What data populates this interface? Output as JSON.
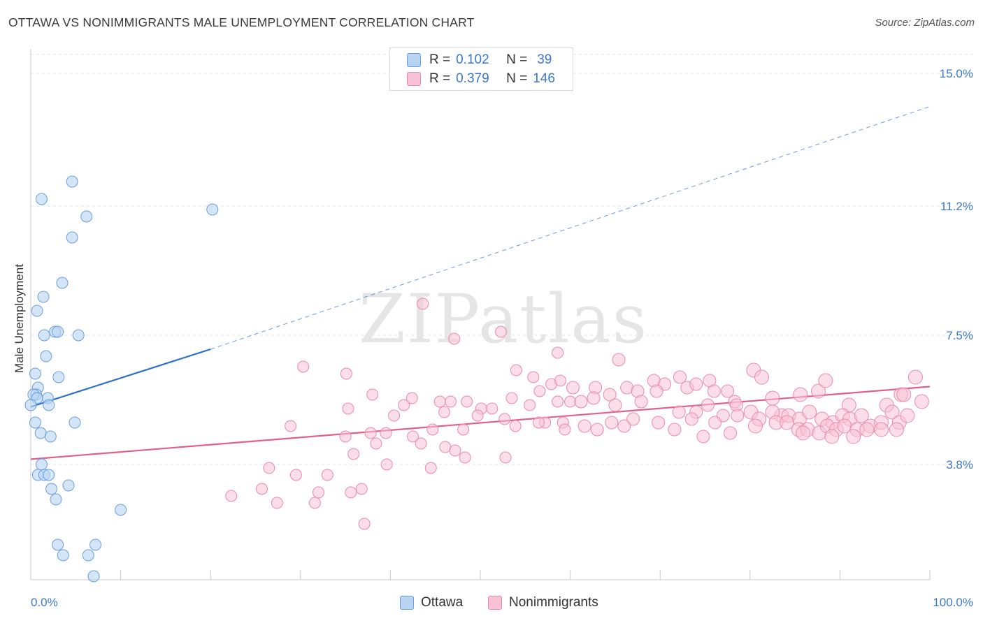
{
  "title": "OTTAWA VS NONIMMIGRANTS MALE UNEMPLOYMENT CORRELATION CHART",
  "source": "Source: ZipAtlas.com",
  "watermark": "ZIPatlas",
  "colors": {
    "ottawa_fill": "#b9d3f3",
    "ottawa_stroke": "#6a9fdc",
    "ottawa_line": "#2e6fcb",
    "nonimm_fill": "#f7c3d3",
    "nonimm_stroke": "#e98aaa",
    "nonimm_line": "#e0608c",
    "axis_text": "#3b78c8",
    "grid": "#e3e3e3"
  },
  "legend": {
    "rows": [
      {
        "r_label": "R =",
        "r_value": "0.102",
        "n_label": "N =",
        "n_value": "39"
      },
      {
        "r_label": "R =",
        "r_value": "0.379",
        "n_label": "N =",
        "n_value": "146"
      }
    ]
  },
  "bottom_legend": [
    "Ottawa",
    "Nonimmigrants"
  ],
  "chart_data": {
    "type": "scatter",
    "title": "OTTAWA VS NONIMMIGRANTS MALE UNEMPLOYMENT CORRELATION CHART",
    "xlabel": "",
    "ylabel": "Male Unemployment",
    "x_tick_labels": [
      "0.0%",
      "100.0%"
    ],
    "y_tick_labels": [
      "15.0%",
      "11.2%",
      "7.5%",
      "3.8%"
    ],
    "y_ticks": [
      15.0,
      11.2,
      7.5,
      3.8
    ],
    "xlim": [
      0,
      100
    ],
    "ylim": [
      0.5,
      15.7
    ],
    "grid": true,
    "series": [
      {
        "name": "Ottawa",
        "points": [
          [
            1.2,
            11.4
          ],
          [
            4.6,
            11.9
          ],
          [
            6.2,
            10.9
          ],
          [
            20.2,
            11.1
          ],
          [
            4.6,
            10.3
          ],
          [
            3.5,
            9.0
          ],
          [
            1.4,
            8.6
          ],
          [
            0.7,
            8.2
          ],
          [
            2.7,
            7.6
          ],
          [
            3.0,
            7.6
          ],
          [
            1.5,
            7.5
          ],
          [
            5.3,
            7.5
          ],
          [
            1.7,
            6.9
          ],
          [
            0.5,
            6.4
          ],
          [
            3.1,
            6.3
          ],
          [
            0.8,
            6.0
          ],
          [
            0.6,
            5.8
          ],
          [
            0.3,
            5.8
          ],
          [
            1.9,
            5.7
          ],
          [
            0.7,
            5.7
          ],
          [
            2.0,
            5.5
          ],
          [
            0.5,
            5.0
          ],
          [
            4.9,
            5.0
          ],
          [
            1.1,
            4.7
          ],
          [
            2.2,
            4.6
          ],
          [
            1.2,
            3.8
          ],
          [
            0.8,
            3.5
          ],
          [
            1.5,
            3.5
          ],
          [
            2.0,
            3.5
          ],
          [
            4.2,
            3.2
          ],
          [
            2.3,
            3.1
          ],
          [
            2.8,
            2.8
          ],
          [
            10.0,
            2.5
          ],
          [
            3.0,
            1.5
          ],
          [
            7.2,
            1.5
          ],
          [
            3.6,
            1.2
          ],
          [
            6.4,
            1.2
          ],
          [
            7.0,
            0.6
          ],
          [
            0.0,
            5.5
          ]
        ],
        "trend": {
          "x": [
            0,
            20
          ],
          "y": [
            5.45,
            7.1
          ],
          "extended_to_x": 100,
          "extended_y": 14.05
        }
      },
      {
        "name": "Nonimmigrants",
        "points": [
          [
            43.6,
            8.4
          ],
          [
            52.3,
            7.6
          ],
          [
            47.1,
            7.4
          ],
          [
            58.6,
            7.0
          ],
          [
            65.4,
            6.8
          ],
          [
            30.3,
            6.6
          ],
          [
            35.1,
            6.4
          ],
          [
            54.0,
            6.5
          ],
          [
            55.9,
            6.3
          ],
          [
            57.9,
            6.1
          ],
          [
            58.9,
            6.2
          ],
          [
            60.3,
            6.0
          ],
          [
            56.6,
            5.9
          ],
          [
            62.8,
            6.0
          ],
          [
            64.4,
            5.8
          ],
          [
            66.3,
            6.0
          ],
          [
            67.5,
            5.9
          ],
          [
            69.3,
            6.2
          ],
          [
            70.5,
            6.1
          ],
          [
            72.2,
            6.3
          ],
          [
            73.0,
            6.0
          ],
          [
            74.0,
            6.1
          ],
          [
            75.5,
            6.2
          ],
          [
            76.0,
            5.9
          ],
          [
            77.5,
            5.9
          ],
          [
            78.3,
            5.6
          ],
          [
            80.4,
            6.5
          ],
          [
            81.3,
            6.3
          ],
          [
            82.5,
            5.7
          ],
          [
            83.5,
            5.2
          ],
          [
            85.6,
            5.8
          ],
          [
            87.6,
            5.9
          ],
          [
            88.4,
            6.2
          ],
          [
            91.0,
            5.5
          ],
          [
            95.2,
            5.5
          ],
          [
            96.8,
            5.8
          ],
          [
            98.4,
            6.3
          ],
          [
            97.1,
            5.8
          ],
          [
            99.1,
            5.6
          ],
          [
            95.8,
            5.3
          ],
          [
            38.0,
            5.8
          ],
          [
            41.5,
            5.5
          ],
          [
            42.4,
            5.7
          ],
          [
            45.5,
            5.6
          ],
          [
            46.7,
            5.6
          ],
          [
            48.5,
            5.6
          ],
          [
            50.1,
            5.4
          ],
          [
            51.3,
            5.4
          ],
          [
            53.5,
            5.7
          ],
          [
            55.5,
            5.5
          ],
          [
            58.6,
            5.6
          ],
          [
            60.0,
            5.6
          ],
          [
            61.2,
            5.6
          ],
          [
            62.6,
            5.7
          ],
          [
            65.0,
            5.5
          ],
          [
            67.9,
            5.6
          ],
          [
            69.6,
            5.9
          ],
          [
            72.1,
            5.3
          ],
          [
            74.0,
            5.3
          ],
          [
            75.3,
            5.5
          ],
          [
            77.0,
            5.2
          ],
          [
            78.5,
            5.5
          ],
          [
            80.1,
            5.3
          ],
          [
            81.0,
            5.1
          ],
          [
            82.5,
            5.3
          ],
          [
            84.3,
            5.2
          ],
          [
            85.5,
            5.1
          ],
          [
            86.6,
            5.3
          ],
          [
            88.0,
            5.1
          ],
          [
            89.2,
            5.0
          ],
          [
            90.3,
            5.2
          ],
          [
            91.1,
            5.1
          ],
          [
            92.4,
            5.2
          ],
          [
            93.4,
            4.9
          ],
          [
            94.6,
            5.0
          ],
          [
            96.6,
            5.0
          ],
          [
            97.5,
            5.2
          ],
          [
            40.4,
            5.2
          ],
          [
            46.0,
            5.3
          ],
          [
            49.7,
            5.2
          ],
          [
            52.7,
            5.1
          ],
          [
            57.2,
            5.0
          ],
          [
            59.2,
            5.0
          ],
          [
            61.6,
            4.9
          ],
          [
            64.6,
            5.0
          ],
          [
            67.0,
            5.1
          ],
          [
            69.8,
            5.0
          ],
          [
            73.5,
            5.1
          ],
          [
            76.1,
            5.0
          ],
          [
            78.6,
            5.2
          ],
          [
            80.6,
            4.9
          ],
          [
            82.9,
            5.0
          ],
          [
            84.1,
            5.0
          ],
          [
            85.4,
            4.8
          ],
          [
            86.4,
            4.8
          ],
          [
            87.7,
            4.7
          ],
          [
            88.6,
            4.9
          ],
          [
            89.6,
            4.8
          ],
          [
            90.5,
            4.9
          ],
          [
            91.9,
            4.8
          ],
          [
            93.0,
            4.8
          ],
          [
            94.6,
            4.8
          ],
          [
            96.3,
            4.8
          ],
          [
            85.9,
            4.7
          ],
          [
            89.1,
            4.6
          ],
          [
            91.5,
            4.6
          ],
          [
            44.7,
            4.8
          ],
          [
            48.1,
            4.8
          ],
          [
            53.9,
            4.9
          ],
          [
            56.5,
            5.0
          ],
          [
            59.4,
            4.8
          ],
          [
            63.0,
            4.8
          ],
          [
            66.0,
            4.9
          ],
          [
            71.6,
            4.8
          ],
          [
            74.8,
            4.6
          ],
          [
            77.8,
            4.7
          ],
          [
            35.3,
            5.4
          ],
          [
            37.8,
            4.7
          ],
          [
            39.5,
            4.7
          ],
          [
            42.5,
            4.6
          ],
          [
            28.9,
            4.9
          ],
          [
            35.0,
            4.6
          ],
          [
            38.4,
            4.4
          ],
          [
            43.4,
            4.4
          ],
          [
            46.1,
            4.3
          ],
          [
            47.2,
            4.2
          ],
          [
            35.9,
            4.1
          ],
          [
            48.3,
            4.0
          ],
          [
            52.8,
            4.0
          ],
          [
            39.6,
            3.8
          ],
          [
            44.5,
            3.7
          ],
          [
            26.5,
            3.7
          ],
          [
            33.0,
            3.5
          ],
          [
            29.5,
            3.5
          ],
          [
            36.8,
            3.1
          ],
          [
            25.7,
            3.1
          ],
          [
            32.0,
            3.0
          ],
          [
            35.6,
            3.0
          ],
          [
            22.3,
            2.9
          ],
          [
            27.4,
            2.7
          ],
          [
            31.6,
            2.7
          ],
          [
            37.1,
            2.1
          ]
        ],
        "trend": {
          "x": [
            0,
            100
          ],
          "y": [
            3.95,
            6.03
          ]
        }
      }
    ]
  }
}
